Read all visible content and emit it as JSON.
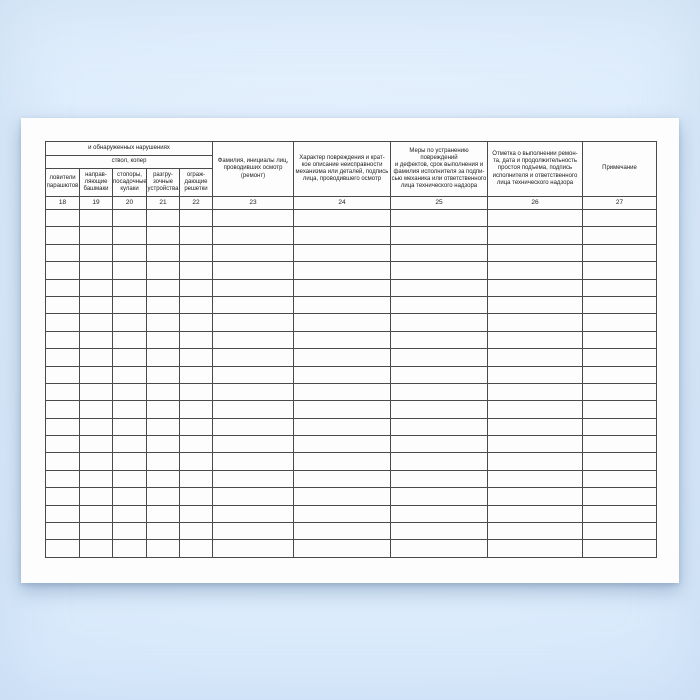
{
  "document": {
    "kind": "scanned journal form page",
    "colors": {
      "background_blue": "#d7e9fc",
      "page_white": "#fdfdfe",
      "table_line": "#4a4a4a",
      "text": "#1c1c1c"
    }
  },
  "table": {
    "continuation_header": "и обнаруженных нарушениях",
    "shaft_group_label": "ствол, копер",
    "sub_columns": [
      {
        "label": "ловители\nпарашютов",
        "num": "18"
      },
      {
        "label": "направ-\nляющие\nбашмаки",
        "num": "19"
      },
      {
        "label": "стопоры,\nпосадочные\nкулаки",
        "num": "20"
      },
      {
        "label": "разгру-\nзочные\nустройства",
        "num": "21"
      },
      {
        "label": "ограж-\nдающие\nрешетки",
        "num": "22"
      }
    ],
    "main_columns": [
      {
        "label": "Фамилия, инициалы лиц,\nпроводивших осмотр (ремонт)",
        "num": "23"
      },
      {
        "label": "Характер повреждения и крат-\nкое описание неисправности\nмеханизма или деталей, подпись\nлица, проводившего осмотр",
        "num": "24"
      },
      {
        "label": "Меры по устранению повреждений\nи дефектов, срок выполнения и\nфамилия исполнителя за подпи-\nсью механика или ответственного\nлица технического надзора",
        "num": "25"
      },
      {
        "label": "Отметка о выполнении ремон-\nта, дата и продолжительность\nпростоя подъема, подпись\nисполнителя и ответственного\nлица технического надзора",
        "num": "26"
      },
      {
        "label": "Примечание",
        "num": "27"
      }
    ],
    "body_rows": 20,
    "body_cells_empty": true
  }
}
